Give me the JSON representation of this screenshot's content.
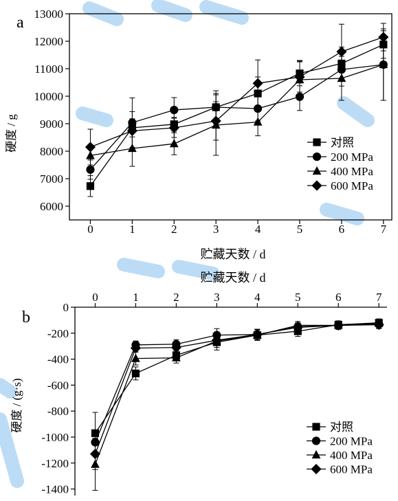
{
  "panels": [
    {
      "letter": "a",
      "xlabel": "贮藏天数 / d",
      "ylabel": "硬度 / g",
      "xaxis_position": "bottom"
    },
    {
      "letter": "b",
      "xlabel": "贮藏天数 / d",
      "ylabel": "硬度 / (g·s)",
      "xaxis_position": "top"
    }
  ],
  "colors": {
    "line": "#000000",
    "watermark": "#3f9be6"
  },
  "chart_data": [
    {
      "type": "line",
      "panel": "a",
      "title": "",
      "xlabel": "贮藏天数 / d",
      "ylabel": "硬度 / g",
      "x": [
        0,
        1,
        2,
        3,
        4,
        5,
        6,
        7
      ],
      "xlim": [
        -0.5,
        7.2
      ],
      "ylim": [
        5500,
        13000
      ],
      "xticks": [
        0,
        1,
        2,
        3,
        4,
        5,
        6,
        7
      ],
      "yticks": [
        6000,
        7000,
        8000,
        9000,
        10000,
        11000,
        12000,
        13000
      ],
      "grid": false,
      "legend": "bottom-right",
      "series": [
        {
          "name": "对照",
          "marker": "square",
          "values": [
            6730,
            8850,
            8980,
            9600,
            10100,
            10830,
            11190,
            11880
          ],
          "errors": [
            380,
            330,
            250,
            500,
            600,
            450,
            600,
            500
          ]
        },
        {
          "name": "200 MPa",
          "marker": "circle",
          "values": [
            7330,
            9040,
            9500,
            9600,
            9550,
            9980,
            10970,
            11150
          ],
          "errors": [
            350,
            900,
            450,
            600,
            450,
            500,
            600,
            1300
          ]
        },
        {
          "name": "400 MPa",
          "marker": "triangle",
          "values": [
            7840,
            8100,
            8270,
            8950,
            9060,
            10600,
            10650,
            11150
          ],
          "errors": [
            400,
            650,
            400,
            1100,
            500,
            700,
            800,
            1300
          ]
        },
        {
          "name": "600 MPa",
          "marker": "diamond",
          "values": [
            8150,
            8740,
            8850,
            9100,
            10470,
            10700,
            11620,
            12150
          ],
          "errors": [
            650,
            700,
            350,
            700,
            850,
            550,
            1000,
            500
          ]
        }
      ]
    },
    {
      "type": "line",
      "panel": "b",
      "title": "",
      "xlabel": "贮藏天数 / d",
      "ylabel": "硬度 / (g·s)",
      "x": [
        0,
        1,
        2,
        3,
        4,
        5,
        6,
        7
      ],
      "xlim": [
        -0.5,
        7.2
      ],
      "ylim": [
        -1450,
        0
      ],
      "xticks": [
        0,
        1,
        2,
        3,
        4,
        5,
        6,
        7
      ],
      "yticks": [
        0,
        -200,
        -400,
        -600,
        -800,
        -1000,
        -1200,
        -1400
      ],
      "grid": false,
      "legend": "bottom-right",
      "series": [
        {
          "name": "对照",
          "marker": "square",
          "values": [
            -970,
            -510,
            -370,
            -270,
            -215,
            -185,
            -135,
            -120
          ],
          "errors": [
            160,
            50,
            35,
            60,
            40,
            40,
            30,
            30
          ]
        },
        {
          "name": "200 MPa",
          "marker": "circle",
          "values": [
            -1040,
            -290,
            -285,
            -215,
            -210,
            -150,
            -140,
            -130
          ],
          "errors": [
            80,
            30,
            35,
            50,
            40,
            30,
            30,
            30
          ]
        },
        {
          "name": "400 MPa",
          "marker": "triangle",
          "values": [
            -1210,
            -395,
            -390,
            -260,
            -215,
            -140,
            -140,
            -125
          ],
          "errors": [
            200,
            50,
            40,
            50,
            40,
            30,
            30,
            30
          ]
        },
        {
          "name": "600 MPa",
          "marker": "diamond",
          "values": [
            -1130,
            -315,
            -310,
            -255,
            -210,
            -155,
            -140,
            -135
          ],
          "errors": [
            120,
            30,
            35,
            40,
            40,
            30,
            30,
            30
          ]
        }
      ]
    }
  ]
}
